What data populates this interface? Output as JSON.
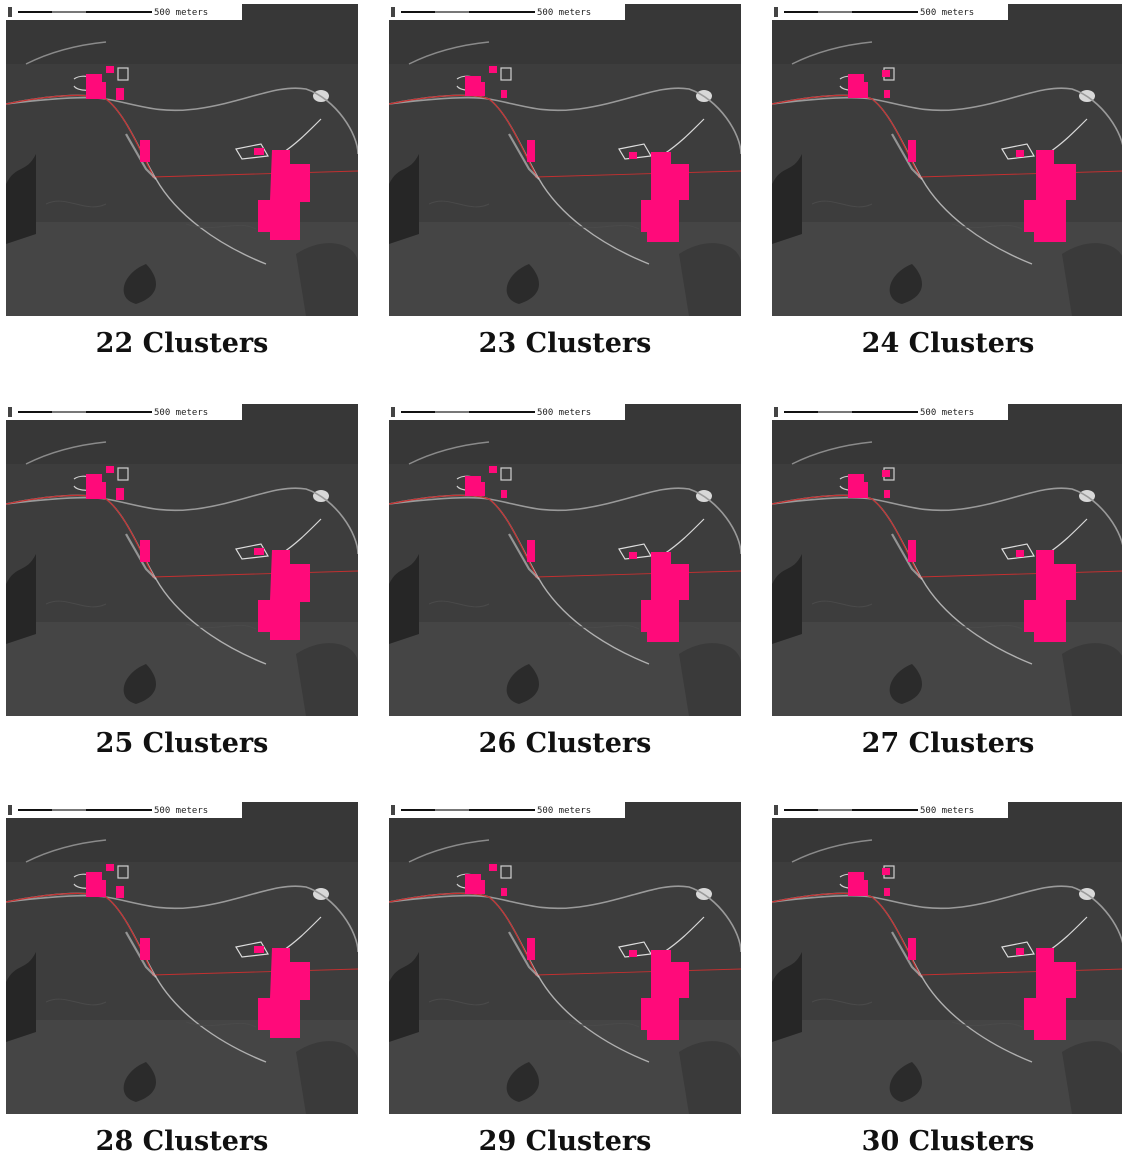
{
  "scale_label": "500 meters",
  "highlight_color": "#ff0a7a",
  "panels": [
    {
      "caption": "22 Clusters"
    },
    {
      "caption": "23 Clusters"
    },
    {
      "caption": "24 Clusters"
    },
    {
      "caption": "25 Clusters"
    },
    {
      "caption": "26 Clusters"
    },
    {
      "caption": "27 Clusters"
    },
    {
      "caption": "28 Clusters"
    },
    {
      "caption": "29 Clusters"
    },
    {
      "caption": "30 Clusters"
    }
  ]
}
